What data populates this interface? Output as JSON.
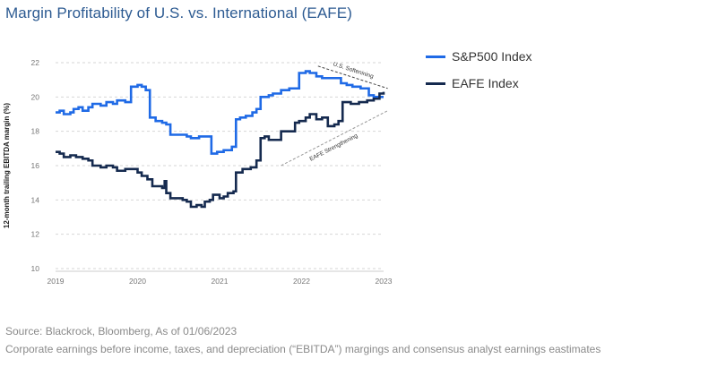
{
  "title": "Margin Profitability of U.S. vs. International (EAFE)",
  "source": "Source: Blackrock, Bloomberg, As of 01/06/2023",
  "note": "Corporate earnings before income, taxes, and depreciation (“EBITDA”) margings and consensus analyst earnings eastimates",
  "chart_data": {
    "type": "line",
    "ylabel": "12-month trailing EBITDA margin (%)",
    "ylim": [
      10,
      22
    ],
    "yticks": [
      10,
      12,
      14,
      16,
      18,
      20,
      22
    ],
    "xlim": [
      2019,
      2023
    ],
    "xticks": [
      "2019",
      "2020",
      "2021",
      "2022",
      "2023"
    ],
    "grid": "horizontal dashed",
    "legend_position": "right",
    "series": [
      {
        "name": "S&P500 Index",
        "color": "#1f6ae6",
        "points": [
          [
            2019.0,
            19.1
          ],
          [
            2019.05,
            19.2
          ],
          [
            2019.1,
            19.0
          ],
          [
            2019.18,
            19.1
          ],
          [
            2019.22,
            19.3
          ],
          [
            2019.28,
            19.4
          ],
          [
            2019.33,
            19.2
          ],
          [
            2019.4,
            19.4
          ],
          [
            2019.45,
            19.6
          ],
          [
            2019.55,
            19.5
          ],
          [
            2019.62,
            19.7
          ],
          [
            2019.7,
            19.6
          ],
          [
            2019.75,
            19.8
          ],
          [
            2019.85,
            19.7
          ],
          [
            2019.92,
            20.6
          ],
          [
            2020.0,
            20.7
          ],
          [
            2020.05,
            20.6
          ],
          [
            2020.1,
            20.4
          ],
          [
            2020.15,
            18.8
          ],
          [
            2020.22,
            18.6
          ],
          [
            2020.3,
            18.5
          ],
          [
            2020.35,
            18.4
          ],
          [
            2020.4,
            17.8
          ],
          [
            2020.5,
            17.8
          ],
          [
            2020.6,
            17.7
          ],
          [
            2020.65,
            17.6
          ],
          [
            2020.75,
            17.7
          ],
          [
            2020.85,
            17.7
          ],
          [
            2020.9,
            16.7
          ],
          [
            2020.97,
            16.8
          ],
          [
            2021.05,
            16.9
          ],
          [
            2021.15,
            17.1
          ],
          [
            2021.2,
            18.7
          ],
          [
            2021.25,
            18.8
          ],
          [
            2021.32,
            18.9
          ],
          [
            2021.4,
            19.1
          ],
          [
            2021.45,
            19.3
          ],
          [
            2021.5,
            20.0
          ],
          [
            2021.6,
            20.1
          ],
          [
            2021.65,
            20.2
          ],
          [
            2021.75,
            20.4
          ],
          [
            2021.85,
            20.5
          ],
          [
            2021.97,
            21.4
          ],
          [
            2022.05,
            21.5
          ],
          [
            2022.1,
            21.4
          ],
          [
            2022.18,
            21.2
          ],
          [
            2022.25,
            21.1
          ],
          [
            2022.35,
            21.1
          ],
          [
            2022.45,
            21.1
          ],
          [
            2022.48,
            20.8
          ],
          [
            2022.55,
            20.7
          ],
          [
            2022.62,
            20.6
          ],
          [
            2022.72,
            20.5
          ],
          [
            2022.82,
            20.1
          ],
          [
            2022.88,
            20.0
          ],
          [
            2022.95,
            20.0
          ],
          [
            2023.0,
            20.0
          ]
        ]
      },
      {
        "name": "EAFE Index",
        "color": "#152a4f",
        "points": [
          [
            2019.0,
            16.8
          ],
          [
            2019.05,
            16.7
          ],
          [
            2019.1,
            16.5
          ],
          [
            2019.18,
            16.6
          ],
          [
            2019.25,
            16.5
          ],
          [
            2019.33,
            16.4
          ],
          [
            2019.4,
            16.3
          ],
          [
            2019.45,
            16.0
          ],
          [
            2019.55,
            15.9
          ],
          [
            2019.62,
            16.0
          ],
          [
            2019.7,
            15.9
          ],
          [
            2019.75,
            15.7
          ],
          [
            2019.85,
            15.8
          ],
          [
            2019.92,
            15.8
          ],
          [
            2020.0,
            15.6
          ],
          [
            2020.05,
            15.4
          ],
          [
            2020.12,
            15.2
          ],
          [
            2020.18,
            14.8
          ],
          [
            2020.22,
            14.8
          ],
          [
            2020.3,
            14.7
          ],
          [
            2020.33,
            15.1
          ],
          [
            2020.35,
            14.4
          ],
          [
            2020.4,
            14.1
          ],
          [
            2020.48,
            14.1
          ],
          [
            2020.55,
            14.0
          ],
          [
            2020.6,
            13.9
          ],
          [
            2020.65,
            13.6
          ],
          [
            2020.72,
            13.7
          ],
          [
            2020.78,
            13.6
          ],
          [
            2020.82,
            13.9
          ],
          [
            2020.88,
            14.0
          ],
          [
            2020.92,
            14.3
          ],
          [
            2021.0,
            14.1
          ],
          [
            2021.05,
            14.2
          ],
          [
            2021.1,
            14.4
          ],
          [
            2021.17,
            14.5
          ],
          [
            2021.2,
            15.6
          ],
          [
            2021.28,
            15.8
          ],
          [
            2021.38,
            15.9
          ],
          [
            2021.45,
            16.3
          ],
          [
            2021.5,
            17.6
          ],
          [
            2021.55,
            17.7
          ],
          [
            2021.6,
            17.5
          ],
          [
            2021.65,
            17.5
          ],
          [
            2021.75,
            18.0
          ],
          [
            2021.85,
            18.0
          ],
          [
            2021.92,
            18.5
          ],
          [
            2021.97,
            18.6
          ],
          [
            2022.05,
            18.8
          ],
          [
            2022.1,
            19.0
          ],
          [
            2022.18,
            18.7
          ],
          [
            2022.25,
            18.8
          ],
          [
            2022.32,
            18.3
          ],
          [
            2022.4,
            18.4
          ],
          [
            2022.45,
            18.6
          ],
          [
            2022.5,
            19.7
          ],
          [
            2022.6,
            19.6
          ],
          [
            2022.7,
            19.7
          ],
          [
            2022.8,
            19.8
          ],
          [
            2022.88,
            19.9
          ],
          [
            2022.95,
            20.2
          ],
          [
            2023.0,
            20.3
          ]
        ]
      }
    ],
    "annotations": [
      {
        "text": "U.S. Softenining",
        "from": [
          2022.2,
          21.8
        ],
        "to": [
          2023.05,
          20.5
        ]
      },
      {
        "text": "EAFE Strengthening",
        "from": [
          2021.75,
          16.0
        ],
        "to": [
          2023.05,
          19.2
        ]
      }
    ]
  }
}
